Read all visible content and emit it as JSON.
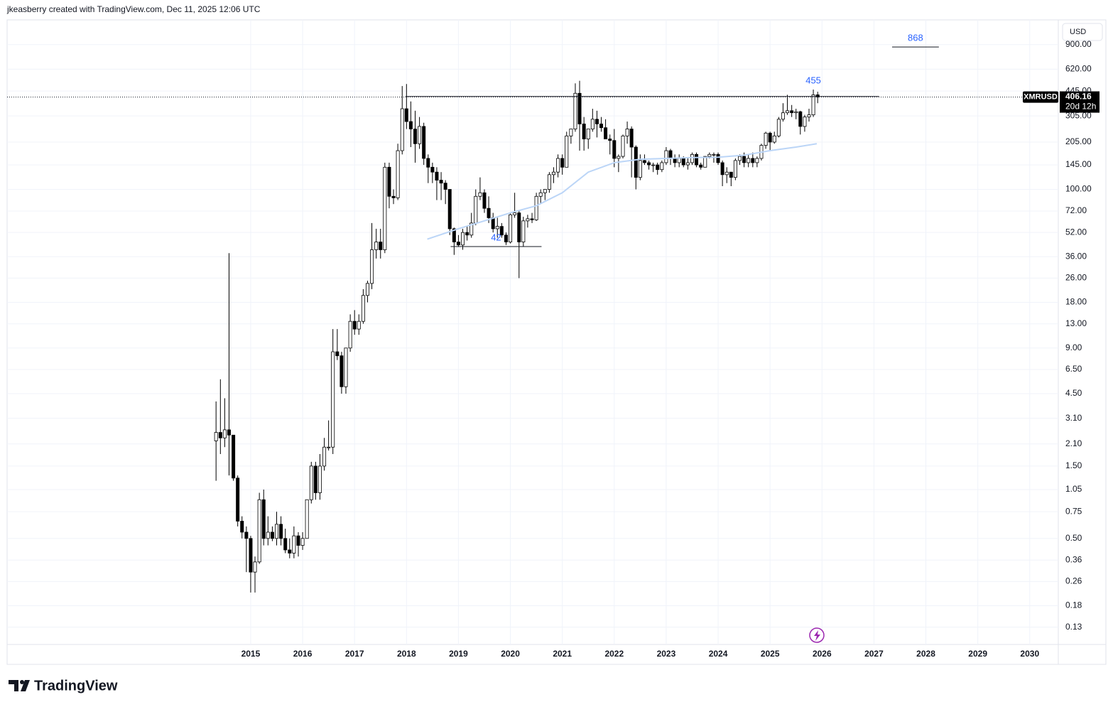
{
  "header": "jkeasberry created with TradingView.com, Dec 11, 2025 12:06 UTC",
  "brand": "TradingView",
  "chart_data": {
    "type": "candlestick",
    "symbol": "XMRUSD",
    "currency": "USD",
    "countdown": "20d 12h",
    "last_price": 406.16,
    "log_scale": true,
    "grid": true,
    "up_color": "#ffffff",
    "down_color": "#000000",
    "xlim": [
      2010.31,
      2030.55
    ],
    "xticks": [
      2015,
      2016,
      2017,
      2018,
      2019,
      2020,
      2021,
      2022,
      2023,
      2024,
      2025,
      2026,
      2027,
      2028,
      2029,
      2030
    ],
    "ylim": [
      0.1,
      1310
    ],
    "yticks": [
      {
        "value": 900,
        "label": "900.00"
      },
      {
        "value": 620,
        "label": "620.00"
      },
      {
        "value": 445,
        "label": "445.00"
      },
      {
        "value": 305,
        "label": "305.00"
      },
      {
        "value": 205,
        "label": "205.00"
      },
      {
        "value": 145,
        "label": "145.00"
      },
      {
        "value": 100,
        "label": "100.00"
      },
      {
        "value": 72,
        "label": "72.00"
      },
      {
        "value": 52,
        "label": "52.00"
      },
      {
        "value": 36,
        "label": "36.00"
      },
      {
        "value": 26,
        "label": "26.00"
      },
      {
        "value": 18,
        "label": "18.00"
      },
      {
        "value": 13,
        "label": "13.00"
      },
      {
        "value": 9,
        "label": "9.00"
      },
      {
        "value": 6.5,
        "label": "6.50"
      },
      {
        "value": 4.5,
        "label": "4.50"
      },
      {
        "value": 3.1,
        "label": "3.10"
      },
      {
        "value": 2.1,
        "label": "2.10"
      },
      {
        "value": 1.5,
        "label": "1.50"
      },
      1.05,
      0.75,
      {
        "value": 0.5,
        "label": "0.50"
      },
      0.36,
      0.26,
      0.18,
      0.13
    ],
    "x": [
      2014.333,
      2014.417,
      2014.5,
      2014.583,
      2014.667,
      2014.75,
      2014.833,
      2014.917,
      2015.0,
      2015.083,
      2015.167,
      2015.25,
      2015.333,
      2015.417,
      2015.5,
      2015.583,
      2015.667,
      2015.75,
      2015.833,
      2015.917,
      2016.0,
      2016.083,
      2016.167,
      2016.25,
      2016.333,
      2016.417,
      2016.5,
      2016.583,
      2016.667,
      2016.75,
      2016.833,
      2016.917,
      2017.0,
      2017.083,
      2017.167,
      2017.25,
      2017.333,
      2017.417,
      2017.5,
      2017.583,
      2017.667,
      2017.75,
      2017.833,
      2017.917,
      2018.0,
      2018.083,
      2018.167,
      2018.25,
      2018.333,
      2018.417,
      2018.5,
      2018.583,
      2018.667,
      2018.75,
      2018.833,
      2018.917,
      2019.0,
      2019.083,
      2019.167,
      2019.25,
      2019.333,
      2019.417,
      2019.5,
      2019.583,
      2019.667,
      2019.75,
      2019.833,
      2019.917,
      2020.0,
      2020.083,
      2020.167,
      2020.25,
      2020.333,
      2020.417,
      2020.5,
      2020.583,
      2020.667,
      2020.75,
      2020.833,
      2020.917,
      2021.0,
      2021.083,
      2021.167,
      2021.25,
      2021.333,
      2021.417,
      2021.5,
      2021.583,
      2021.667,
      2021.75,
      2021.833,
      2021.917,
      2022.0,
      2022.083,
      2022.167,
      2022.25,
      2022.333,
      2022.417,
      2022.5,
      2022.583,
      2022.667,
      2022.75,
      2022.833,
      2022.917,
      2023.0,
      2023.083,
      2023.167,
      2023.25,
      2023.333,
      2023.417,
      2023.5,
      2023.583,
      2023.667,
      2023.75,
      2023.833,
      2023.917,
      2024.0,
      2024.083,
      2024.167,
      2024.25,
      2024.333,
      2024.417,
      2024.5,
      2024.583,
      2024.667,
      2024.75,
      2024.833,
      2024.917,
      2025.0,
      2025.083,
      2025.167,
      2025.25,
      2025.333,
      2025.417,
      2025.5,
      2025.583,
      2025.667,
      2025.75,
      2025.833,
      2025.917
    ],
    "open": [
      2.2,
      2.5,
      2.3,
      2.6,
      2.4,
      1.25,
      0.65,
      0.55,
      0.5,
      0.3,
      0.35,
      0.9,
      0.5,
      0.55,
      0.5,
      0.62,
      0.5,
      0.42,
      0.4,
      0.52,
      0.45,
      0.5,
      0.9,
      1.5,
      1.0,
      1.5,
      2.0,
      2.0,
      8.5,
      8.0,
      5.0,
      9.0,
      13.5,
      12,
      13.5,
      20,
      24,
      40,
      45,
      40,
      140,
      90,
      88,
      180,
      340,
      280,
      250,
      200,
      260,
      160,
      140,
      130,
      115,
      110,
      100,
      55,
      45,
      43,
      52,
      50,
      60,
      90,
      95,
      75,
      65,
      55,
      57,
      50,
      45,
      68,
      70,
      45,
      62,
      64,
      63,
      90,
      95,
      100,
      125,
      130,
      160,
      140,
      225,
      250,
      430,
      270,
      215,
      250,
      290,
      270,
      255,
      215,
      210,
      160,
      165,
      225,
      250,
      190,
      120,
      155,
      150,
      145,
      145,
      135,
      150,
      180,
      160,
      150,
      160,
      145,
      150,
      170,
      145,
      140,
      165,
      170,
      170,
      150,
      125,
      130,
      120,
      155,
      165,
      150,
      160,
      150,
      160,
      195,
      235,
      205,
      225,
      290,
      320,
      330,
      320,
      325,
      260,
      300,
      310,
      420
    ],
    "high": [
      4.0,
      5.6,
      4.2,
      38,
      2.4,
      1.3,
      0.7,
      0.6,
      0.52,
      0.38,
      1.0,
      1.05,
      0.7,
      0.6,
      0.75,
      0.7,
      0.58,
      0.5,
      0.6,
      0.55,
      0.55,
      0.9,
      1.6,
      1.6,
      1.8,
      2.3,
      3.0,
      12,
      12,
      8.5,
      9,
      15,
      16,
      15,
      22,
      25,
      60,
      55,
      55,
      150,
      150,
      100,
      200,
      480,
      495,
      380,
      330,
      300,
      275,
      170,
      150,
      140,
      130,
      115,
      100,
      56,
      50,
      55,
      57,
      70,
      100,
      120,
      100,
      90,
      70,
      65,
      60,
      52,
      70,
      95,
      72,
      66,
      68,
      70,
      95,
      100,
      100,
      130,
      140,
      170,
      170,
      240,
      250,
      500,
      520,
      300,
      250,
      340,
      330,
      300,
      290,
      230,
      250,
      170,
      230,
      280,
      260,
      195,
      170,
      170,
      155,
      150,
      150,
      155,
      190,
      185,
      170,
      170,
      165,
      160,
      175,
      175,
      150,
      165,
      175,
      175,
      175,
      155,
      140,
      130,
      160,
      170,
      175,
      170,
      175,
      165,
      200,
      240,
      240,
      240,
      300,
      370,
      420,
      360,
      340,
      330,
      310,
      340,
      455,
      440
    ],
    "low": [
      1.2,
      1.8,
      2.0,
      1.3,
      1.2,
      0.6,
      0.5,
      0.3,
      0.22,
      0.22,
      0.34,
      0.45,
      0.45,
      0.48,
      0.45,
      0.45,
      0.4,
      0.37,
      0.37,
      0.38,
      0.42,
      0.5,
      0.85,
      0.9,
      0.9,
      1.4,
      1.9,
      1.8,
      7.5,
      4.5,
      4.5,
      8.5,
      11,
      11,
      13,
      18,
      22,
      35,
      35,
      38,
      75,
      80,
      85,
      170,
      250,
      190,
      150,
      185,
      145,
      110,
      110,
      85,
      85,
      80,
      50,
      37,
      42,
      40,
      46,
      48,
      58,
      85,
      70,
      60,
      52,
      48,
      48,
      43,
      44,
      65,
      26,
      42,
      56,
      60,
      62,
      80,
      85,
      95,
      110,
      120,
      125,
      140,
      200,
      240,
      180,
      180,
      185,
      240,
      220,
      240,
      215,
      170,
      140,
      130,
      160,
      200,
      120,
      100,
      115,
      145,
      135,
      130,
      125,
      130,
      145,
      145,
      140,
      140,
      140,
      135,
      145,
      140,
      135,
      140,
      160,
      150,
      145,
      105,
      110,
      105,
      115,
      145,
      140,
      140,
      140,
      140,
      155,
      185,
      180,
      200,
      220,
      280,
      310,
      300,
      290,
      230,
      240,
      280,
      300,
      370
    ],
    "close": [
      2.5,
      2.3,
      2.6,
      2.4,
      1.25,
      0.65,
      0.55,
      0.5,
      0.3,
      0.35,
      0.9,
      0.5,
      0.55,
      0.5,
      0.62,
      0.5,
      0.42,
      0.4,
      0.52,
      0.45,
      0.5,
      0.9,
      1.5,
      1.0,
      1.5,
      2.0,
      2.0,
      8.5,
      8.0,
      5.0,
      9.0,
      13.5,
      12,
      13.5,
      20,
      24,
      40,
      45,
      40,
      140,
      90,
      88,
      180,
      340,
      280,
      250,
      200,
      260,
      160,
      140,
      130,
      115,
      110,
      100,
      55,
      45,
      43,
      52,
      50,
      60,
      90,
      95,
      75,
      65,
      55,
      57,
      50,
      45,
      68,
      70,
      45,
      62,
      64,
      63,
      90,
      95,
      100,
      125,
      130,
      160,
      140,
      225,
      250,
      430,
      270,
      215,
      250,
      290,
      270,
      255,
      215,
      210,
      160,
      165,
      225,
      250,
      190,
      120,
      155,
      150,
      145,
      145,
      135,
      150,
      180,
      160,
      150,
      160,
      145,
      150,
      170,
      145,
      140,
      165,
      170,
      170,
      150,
      125,
      130,
      120,
      155,
      165,
      150,
      160,
      150,
      160,
      195,
      235,
      205,
      225,
      290,
      320,
      330,
      320,
      325,
      260,
      300,
      310,
      420,
      406.16
    ],
    "moving_average": {
      "color": "#bbd5f7",
      "x": [
        2018.4,
        2019.0,
        2019.5,
        2020.0,
        2020.5,
        2021.0,
        2021.5,
        2022.0,
        2022.5,
        2023.0,
        2023.5,
        2024.0,
        2024.5,
        2025.0,
        2025.5,
        2025.9
      ],
      "values": [
        47,
        55,
        62,
        70,
        78,
        95,
        130,
        150,
        158,
        160,
        162,
        163,
        168,
        180,
        190,
        200
      ]
    },
    "resistance": {
      "value": 410,
      "x": [
        2017.98,
        2027.1
      ]
    },
    "levels": [
      {
        "value": 868,
        "x": [
          2027.35,
          2028.25
        ],
        "color": "#2962ff"
      },
      {
        "value": 42,
        "x": [
          2018.85,
          2020.6
        ],
        "color": "#2962ff"
      }
    ],
    "high_label": {
      "value": 455,
      "index": 138,
      "color": "#2962ff"
    }
  }
}
